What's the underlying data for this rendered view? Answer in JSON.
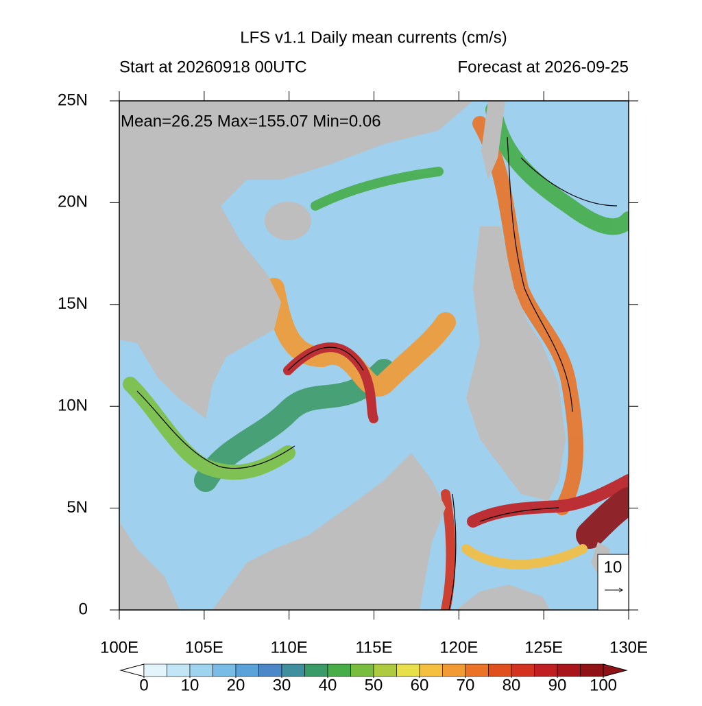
{
  "title": "LFS v1.1 Daily mean currents (cm/s)",
  "start": "Start at 20260918 00UTC",
  "forecast": "Forecast at 2026-09-25",
  "stats": "Mean=26.25  Max=155.07  Min=0.06",
  "xlim": [
    100,
    130
  ],
  "ylim": [
    0,
    25
  ],
  "xticks": [
    {
      "value": 100,
      "label": "100E"
    },
    {
      "value": 105,
      "label": "105E"
    },
    {
      "value": 110,
      "label": "110E"
    },
    {
      "value": 115,
      "label": "115E"
    },
    {
      "value": 120,
      "label": "120E"
    },
    {
      "value": 125,
      "label": "125E"
    },
    {
      "value": 130,
      "label": "130E"
    }
  ],
  "yticks": [
    0,
    {
      "value": 5,
      "label": "5N"
    },
    {
      "value": 10,
      "label": "10N"
    },
    {
      "value": 15,
      "label": "15N"
    },
    {
      "value": 20,
      "label": "20N"
    },
    {
      "value": 25,
      "label": "25N"
    }
  ],
  "colorbar": {
    "ticks": [
      0,
      10,
      20,
      30,
      40,
      50,
      60,
      70,
      80,
      90,
      100
    ],
    "colors": [
      "#e4f4fb",
      "#c2e6f5",
      "#9fd4ef",
      "#79bde7",
      "#5aa3da",
      "#4a88c8",
      "#3f8f9e",
      "#3a9a68",
      "#46ad48",
      "#79bd3f",
      "#aecb3f",
      "#e8e04a",
      "#f5bf3f",
      "#f29a34",
      "#ea7328",
      "#e0501f",
      "#d3321e",
      "#c01f21",
      "#a8161c",
      "#8e1216"
    ]
  },
  "reference_vector": "10"
}
